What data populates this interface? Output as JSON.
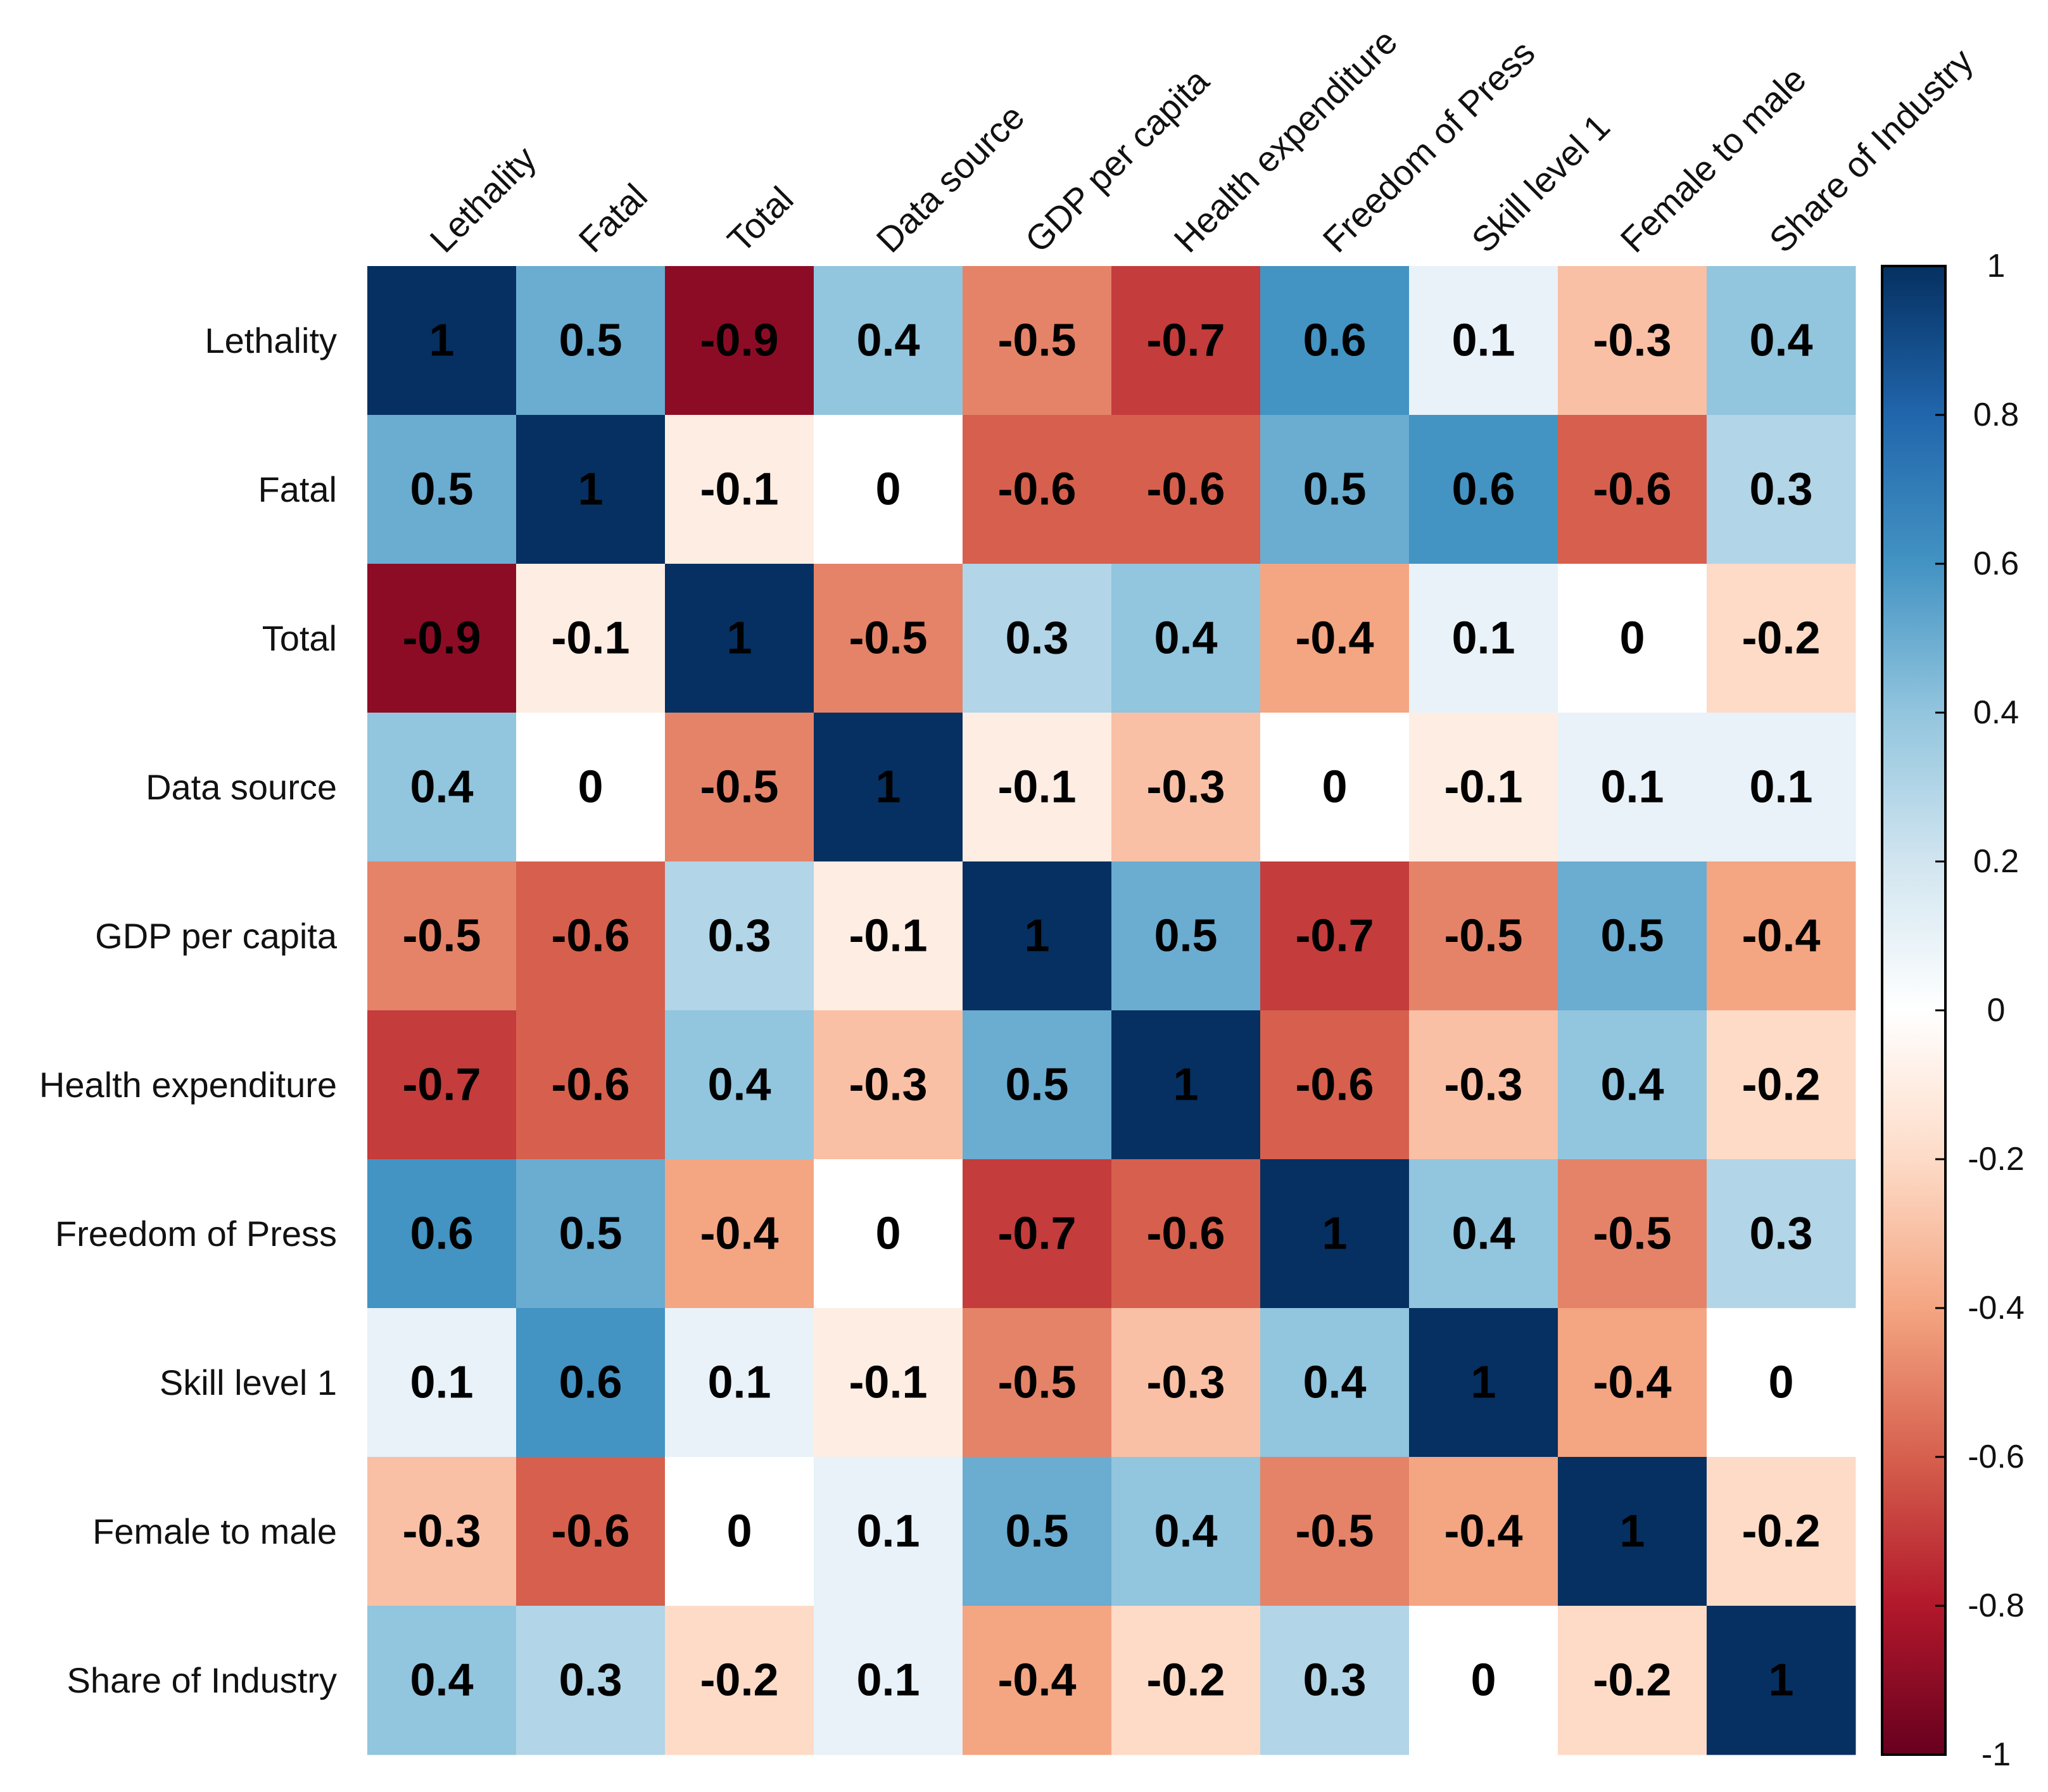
{
  "chart_data": {
    "type": "heatmap",
    "title": "",
    "xlabel": "",
    "ylabel": "",
    "variables": [
      "Lethality",
      "Fatal",
      "Total",
      "Data source",
      "GDP per capita",
      "Health expenditure",
      "Freedom of Press",
      "Skill level 1",
      "Female to male",
      "Share of Industry"
    ],
    "matrix": [
      [
        1,
        0.5,
        -0.9,
        0.4,
        -0.5,
        -0.7,
        0.6,
        0.1,
        -0.3,
        0.4
      ],
      [
        0.5,
        1,
        -0.1,
        0,
        -0.6,
        -0.6,
        0.5,
        0.6,
        -0.6,
        0.3
      ],
      [
        -0.9,
        -0.1,
        1,
        -0.5,
        0.3,
        0.4,
        -0.4,
        0.1,
        0,
        -0.2
      ],
      [
        0.4,
        0,
        -0.5,
        1,
        -0.1,
        -0.3,
        0,
        -0.1,
        0.1,
        0.1
      ],
      [
        -0.5,
        -0.6,
        0.3,
        -0.1,
        1,
        0.5,
        -0.7,
        -0.5,
        0.5,
        -0.4
      ],
      [
        -0.7,
        -0.6,
        0.4,
        -0.3,
        0.5,
        1,
        -0.6,
        -0.3,
        0.4,
        -0.2
      ],
      [
        0.6,
        0.5,
        -0.4,
        0,
        -0.7,
        -0.6,
        1,
        0.4,
        -0.5,
        0.3
      ],
      [
        0.1,
        0.6,
        0.1,
        -0.1,
        -0.5,
        -0.3,
        0.4,
        1,
        -0.4,
        0
      ],
      [
        -0.3,
        -0.6,
        0,
        0.1,
        0.5,
        0.4,
        -0.5,
        -0.4,
        1,
        -0.2
      ],
      [
        0.4,
        0.3,
        -0.2,
        0.1,
        -0.4,
        -0.2,
        0.3,
        0,
        -0.2,
        1
      ]
    ],
    "colorbar": {
      "range": [
        -1,
        1
      ],
      "ticks": [
        1,
        0.8,
        0.6,
        0.4,
        0.2,
        0,
        -0.2,
        -0.4,
        -0.6,
        -0.8,
        -1
      ],
      "tick_labels": [
        "1",
        "0.8",
        "0.6",
        "0.4",
        "0.2",
        "0",
        "-0.2",
        "-0.4",
        "-0.6",
        "-0.8",
        "-1"
      ],
      "palette": [
        "#67001F",
        "#B2182B",
        "#D6604D",
        "#F4A582",
        "#FDDBC7",
        "#FFFFFF",
        "#D1E5F0",
        "#92C5DE",
        "#4393C3",
        "#2166AC",
        "#053061"
      ]
    },
    "grid": false,
    "legend": "right"
  }
}
